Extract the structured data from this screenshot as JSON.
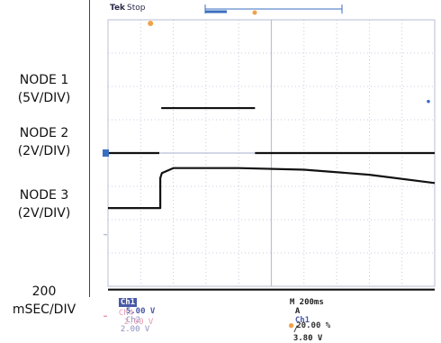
{
  "scope": {
    "brand": "Tek",
    "state": "Stop"
  },
  "labels": {
    "node1_name": "NODE 1",
    "node1_scale": "(5V/DIV)",
    "node2_name": "NODE 2",
    "node2_scale": "(2V/DIV)",
    "node3_name": "NODE 3",
    "node3_scale": "(2V/DIV)",
    "time_value": "200",
    "time_unit": "mSEC/DIV"
  },
  "status": {
    "ch1": "Ch1",
    "ch1_scale": "5.00 V",
    "ch2": "Ch2",
    "ch2_scale": "2.00 V",
    "timebase": "M 200ms",
    "trigger_mode": "A",
    "trigger_source": "Ch1",
    "trigger_slope": "∕",
    "trigger_level": "3.80 V",
    "math_label": "Ch4",
    "math_scale": "2.00 V",
    "trigger_position": "20.00 %"
  },
  "colors": {
    "background": "#ffffff",
    "grid": "#b9bfd6",
    "trace": "#121212",
    "marker_blue": "#3a6fc0",
    "marker_orange": "#f0a24a",
    "status_blue": "#4a5aa8",
    "status_pink": "#e59ab0"
  },
  "chart_data": {
    "type": "line",
    "xlabel": "200 mSEC/DIV",
    "x_divisions": 10,
    "y_divisions": 8,
    "xlim": [
      -400,
      1600
    ],
    "x_unit": "ms",
    "series": [
      {
        "name": "NODE 1",
        "volts_per_div": 5,
        "baseline_div": 0,
        "x": [
          -400,
          -80,
          -80,
          500,
          500,
          1600
        ],
        "y_div": [
          0,
          0,
          1.35,
          1.35,
          0,
          0
        ]
      },
      {
        "name": "NODE 2",
        "volts_per_div": 2,
        "baseline_div": -1.65,
        "x": [
          -400,
          -80,
          -80,
          -70,
          0,
          400,
          800,
          1200,
          1600
        ],
        "y_div": [
          -1.65,
          -1.65,
          -0.75,
          -0.6,
          -0.45,
          -0.45,
          -0.5,
          -0.65,
          -0.9
        ]
      },
      {
        "name": "NODE 3",
        "volts_per_div": 2,
        "baseline_div": -4.1,
        "x": [
          -400,
          1600
        ],
        "y_div": [
          -4.1,
          -4.1
        ]
      }
    ]
  }
}
